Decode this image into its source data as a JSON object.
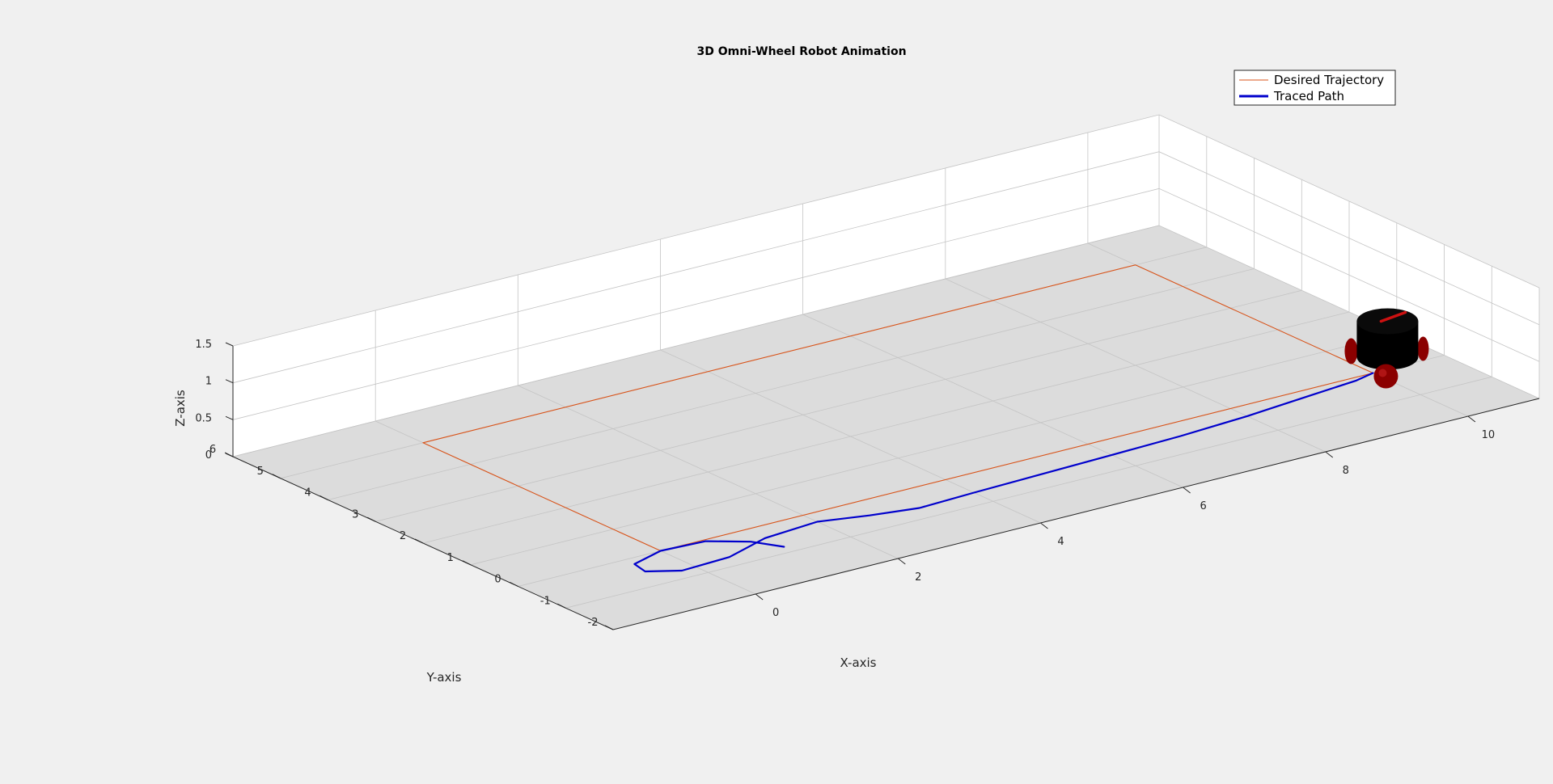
{
  "chart_data": {
    "type": "line",
    "title": "3D Omni-Wheel Robot Animation",
    "xlabel": "X-axis",
    "ylabel": "Y-axis",
    "zlabel": "Z-axis",
    "xlim": [
      -2,
      11
    ],
    "ylim": [
      -2,
      6
    ],
    "zlim": [
      0,
      1.5
    ],
    "x_ticks": [
      "0",
      "2",
      "4",
      "6",
      "8",
      "10"
    ],
    "y_ticks": [
      "-2",
      "-1",
      "0",
      "1",
      "2",
      "3",
      "4",
      "5",
      "6"
    ],
    "z_ticks": [
      "0",
      "0.5",
      "1",
      "1.5"
    ],
    "grid": true,
    "legend_position": "top-right",
    "series": [
      {
        "name": "Desired Trajectory",
        "color": "#d95319",
        "x": [
          0,
          10,
          10,
          0,
          0
        ],
        "y": [
          0,
          0,
          5,
          5,
          0
        ],
        "z": [
          0,
          0,
          0,
          0,
          0
        ]
      },
      {
        "name": "Traced Path",
        "color": "#0000cc",
        "x": [
          1.2,
          1.0,
          0.6,
          0.0,
          -0.5,
          -0.55,
          -0.2,
          0.5,
          1.2,
          2.0,
          2.6,
          3.2,
          4.0,
          5.0,
          6.0,
          7.0,
          8.0,
          9.0,
          9.7,
          10.0
        ],
        "y": [
          -0.8,
          -0.4,
          -0.05,
          0.0,
          -0.2,
          -0.5,
          -0.75,
          -0.7,
          -0.4,
          -0.3,
          -0.5,
          -0.65,
          -0.6,
          -0.55,
          -0.5,
          -0.45,
          -0.35,
          -0.2,
          -0.1,
          0.0
        ],
        "z": [
          0,
          0,
          0,
          0,
          0,
          0,
          0,
          0,
          0,
          0,
          0,
          0,
          0,
          0,
          0,
          0,
          0,
          0,
          0,
          0
        ]
      }
    ],
    "robot": {
      "position": {
        "x": 10.0,
        "y": 0.0
      },
      "body_color": "#000000",
      "wheel_color": "#8b0000"
    }
  }
}
